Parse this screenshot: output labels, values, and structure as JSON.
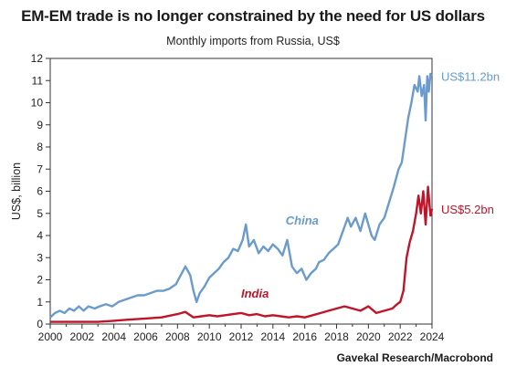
{
  "title": "EM-EM trade is no longer constrained by the need for US dollars",
  "subtitle": "Monthly imports from Russia, US$",
  "source": "Gavekal Research/Macrobond",
  "chart_data": {
    "type": "line",
    "title": "EM-EM trade is no longer constrained by the need for US dollars",
    "subtitle": "Monthly imports from Russia, US$",
    "ylabel": "US$, billion",
    "xlim": [
      2000,
      2024
    ],
    "ylim": [
      0,
      12
    ],
    "xticks": [
      "2000",
      "2002",
      "2004",
      "2006",
      "2008",
      "2010",
      "2012",
      "2014",
      "2016",
      "2018",
      "2020",
      "2022",
      "2024"
    ],
    "yticks": [
      "0",
      "1",
      "2",
      "3",
      "4",
      "5",
      "6",
      "7",
      "8",
      "9",
      "10",
      "11",
      "12"
    ],
    "grid": false,
    "legend": "inline labels",
    "series": [
      {
        "name": "China",
        "color": "#6a9bcc",
        "end_label": "US$11.2bn",
        "points": [
          [
            2000.0,
            0.3
          ],
          [
            2000.3,
            0.5
          ],
          [
            2000.6,
            0.6
          ],
          [
            2000.9,
            0.5
          ],
          [
            2001.2,
            0.7
          ],
          [
            2001.5,
            0.6
          ],
          [
            2001.8,
            0.8
          ],
          [
            2002.1,
            0.6
          ],
          [
            2002.4,
            0.8
          ],
          [
            2002.8,
            0.7
          ],
          [
            2003.1,
            0.8
          ],
          [
            2003.5,
            0.9
          ],
          [
            2003.9,
            0.8
          ],
          [
            2004.3,
            1.0
          ],
          [
            2004.7,
            1.1
          ],
          [
            2005.1,
            1.2
          ],
          [
            2005.5,
            1.3
          ],
          [
            2005.9,
            1.3
          ],
          [
            2006.3,
            1.4
          ],
          [
            2006.7,
            1.5
          ],
          [
            2007.1,
            1.5
          ],
          [
            2007.5,
            1.6
          ],
          [
            2007.9,
            1.8
          ],
          [
            2008.2,
            2.2
          ],
          [
            2008.5,
            2.6
          ],
          [
            2008.8,
            2.2
          ],
          [
            2009.0,
            1.5
          ],
          [
            2009.2,
            1.0
          ],
          [
            2009.4,
            1.4
          ],
          [
            2009.7,
            1.7
          ],
          [
            2010.0,
            2.1
          ],
          [
            2010.3,
            2.3
          ],
          [
            2010.6,
            2.5
          ],
          [
            2010.9,
            2.8
          ],
          [
            2011.2,
            3.0
          ],
          [
            2011.5,
            3.4
          ],
          [
            2011.8,
            3.3
          ],
          [
            2012.1,
            3.8
          ],
          [
            2012.3,
            4.5
          ],
          [
            2012.5,
            3.5
          ],
          [
            2012.8,
            3.8
          ],
          [
            2013.1,
            3.2
          ],
          [
            2013.4,
            3.5
          ],
          [
            2013.7,
            3.3
          ],
          [
            2014.0,
            3.6
          ],
          [
            2014.3,
            3.4
          ],
          [
            2014.6,
            3.1
          ],
          [
            2014.9,
            3.8
          ],
          [
            2015.2,
            2.6
          ],
          [
            2015.5,
            2.3
          ],
          [
            2015.8,
            2.5
          ],
          [
            2016.1,
            2.0
          ],
          [
            2016.4,
            2.3
          ],
          [
            2016.7,
            2.5
          ],
          [
            2016.9,
            2.8
          ],
          [
            2017.2,
            2.9
          ],
          [
            2017.5,
            3.2
          ],
          [
            2017.8,
            3.4
          ],
          [
            2018.1,
            3.6
          ],
          [
            2018.4,
            4.2
          ],
          [
            2018.7,
            4.8
          ],
          [
            2018.9,
            4.4
          ],
          [
            2019.2,
            4.8
          ],
          [
            2019.5,
            4.2
          ],
          [
            2019.8,
            5.0
          ],
          [
            2020.0,
            4.5
          ],
          [
            2020.2,
            4.0
          ],
          [
            2020.4,
            3.8
          ],
          [
            2020.7,
            4.5
          ],
          [
            2021.0,
            4.8
          ],
          [
            2021.3,
            5.5
          ],
          [
            2021.6,
            6.2
          ],
          [
            2021.9,
            7.0
          ],
          [
            2022.1,
            7.3
          ],
          [
            2022.3,
            8.3
          ],
          [
            2022.5,
            9.3
          ],
          [
            2022.7,
            10.0
          ],
          [
            2022.9,
            10.8
          ],
          [
            2023.1,
            10.5
          ],
          [
            2023.2,
            11.2
          ],
          [
            2023.35,
            10.3
          ],
          [
            2023.5,
            10.8
          ],
          [
            2023.6,
            9.2
          ],
          [
            2023.7,
            11.2
          ],
          [
            2023.8,
            10.5
          ],
          [
            2023.9,
            11.3
          ],
          [
            2024.0,
            11.2
          ]
        ]
      },
      {
        "name": "India",
        "color": "#c0142a",
        "end_label": "US$5.2bn",
        "points": [
          [
            2000.0,
            0.1
          ],
          [
            2001.0,
            0.1
          ],
          [
            2002.0,
            0.1
          ],
          [
            2003.0,
            0.1
          ],
          [
            2004.0,
            0.15
          ],
          [
            2005.0,
            0.2
          ],
          [
            2006.0,
            0.25
          ],
          [
            2007.0,
            0.3
          ],
          [
            2008.0,
            0.45
          ],
          [
            2008.5,
            0.55
          ],
          [
            2009.0,
            0.3
          ],
          [
            2009.5,
            0.35
          ],
          [
            2010.0,
            0.4
          ],
          [
            2010.5,
            0.35
          ],
          [
            2011.0,
            0.4
          ],
          [
            2011.5,
            0.45
          ],
          [
            2012.0,
            0.5
          ],
          [
            2012.5,
            0.4
          ],
          [
            2013.0,
            0.45
          ],
          [
            2013.5,
            0.35
          ],
          [
            2014.0,
            0.4
          ],
          [
            2014.5,
            0.35
          ],
          [
            2015.0,
            0.3
          ],
          [
            2015.5,
            0.35
          ],
          [
            2016.0,
            0.3
          ],
          [
            2016.5,
            0.4
          ],
          [
            2017.0,
            0.5
          ],
          [
            2017.5,
            0.6
          ],
          [
            2018.0,
            0.7
          ],
          [
            2018.5,
            0.8
          ],
          [
            2019.0,
            0.7
          ],
          [
            2019.5,
            0.6
          ],
          [
            2020.0,
            0.8
          ],
          [
            2020.5,
            0.5
          ],
          [
            2021.0,
            0.6
          ],
          [
            2021.5,
            0.7
          ],
          [
            2021.8,
            0.9
          ],
          [
            2022.0,
            1.0
          ],
          [
            2022.2,
            1.5
          ],
          [
            2022.4,
            3.0
          ],
          [
            2022.6,
            3.7
          ],
          [
            2022.8,
            4.2
          ],
          [
            2023.0,
            5.0
          ],
          [
            2023.15,
            5.8
          ],
          [
            2023.3,
            5.0
          ],
          [
            2023.45,
            6.0
          ],
          [
            2023.6,
            4.5
          ],
          [
            2023.75,
            6.2
          ],
          [
            2023.9,
            4.9
          ],
          [
            2024.0,
            5.2
          ]
        ]
      }
    ],
    "annotations": [
      {
        "text": "China",
        "series": "China",
        "anchor": [
          2014.8,
          4.5
        ]
      },
      {
        "text": "India",
        "series": "India",
        "anchor": [
          2012.0,
          1.2
        ]
      }
    ]
  }
}
